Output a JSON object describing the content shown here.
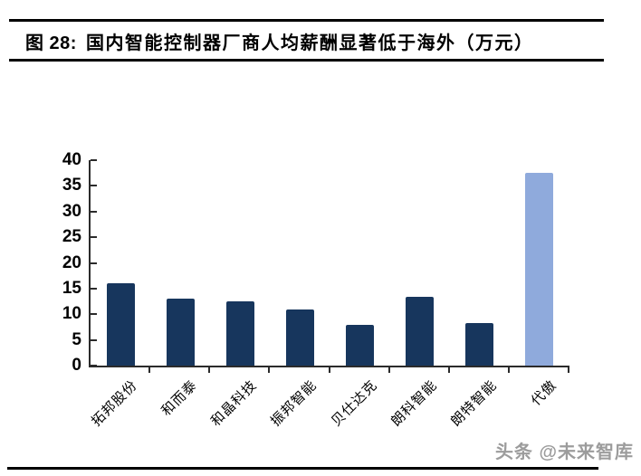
{
  "header": {
    "figure_label": "图 28:",
    "title": "国内智能控制器厂商人均薪酬显著低于海外（万元）"
  },
  "chart_data": {
    "type": "bar",
    "title": "国内智能控制器厂商人均薪酬显著低于海外（万元）",
    "categories": [
      "拓邦股份",
      "和而泰",
      "和晶科技",
      "振邦智能",
      "贝仕达克",
      "朗科智能",
      "朗特智能",
      "代傲"
    ],
    "values": [
      16.1,
      13.1,
      12.6,
      11.0,
      8.0,
      13.4,
      8.3,
      37.5
    ],
    "xlabel": "",
    "ylabel": "",
    "ylim": [
      0,
      40
    ],
    "yticks": [
      0,
      5,
      10,
      15,
      20,
      25,
      30,
      35,
      40
    ],
    "grid": false,
    "legend": "none",
    "bar_colors": [
      "#17365D",
      "#17365D",
      "#17365D",
      "#17365D",
      "#17365D",
      "#17365D",
      "#17365D",
      "#8FAADC"
    ]
  },
  "colors": {
    "bar_dark": "#17365D",
    "bar_light": "#8FAADC",
    "axis": "#2b2b2b",
    "rule": "#000000",
    "watermark_text": "#9c9c9c"
  },
  "watermark": "头条 @未来智库"
}
